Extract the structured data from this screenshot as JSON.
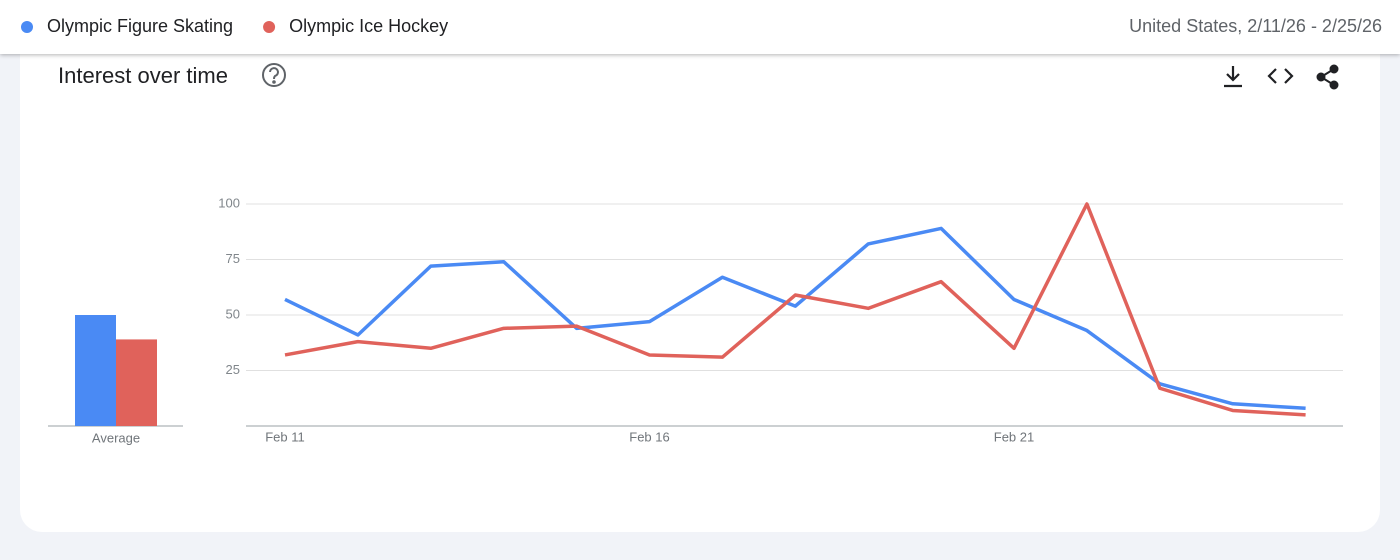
{
  "header": {
    "location_range": "United States, 2/11/26 - 2/25/26"
  },
  "chart_data": {
    "type": "line",
    "title": "Interest over time",
    "categories": [
      "Feb 11",
      null,
      null,
      null,
      null,
      "Feb 16",
      null,
      null,
      null,
      null,
      "Feb 21",
      null,
      null,
      null,
      null
    ],
    "series": [
      {
        "name": "Olympic Figure Skating",
        "color": "#4a8af4",
        "average": 50,
        "values": [
          57,
          41,
          72,
          74,
          44,
          47,
          67,
          54,
          82,
          89,
          57,
          43,
          19,
          10,
          8
        ]
      },
      {
        "name": "Olympic Ice Hockey",
        "color": "#e0625b",
        "average": 39,
        "values": [
          32,
          38,
          35,
          44,
          45,
          32,
          31,
          59,
          53,
          65,
          35,
          100,
          17,
          7,
          5
        ]
      }
    ],
    "average_label": "Average",
    "ylim": [
      0,
      100
    ],
    "yticks": [
      25,
      50,
      75,
      100
    ],
    "grid": true
  }
}
